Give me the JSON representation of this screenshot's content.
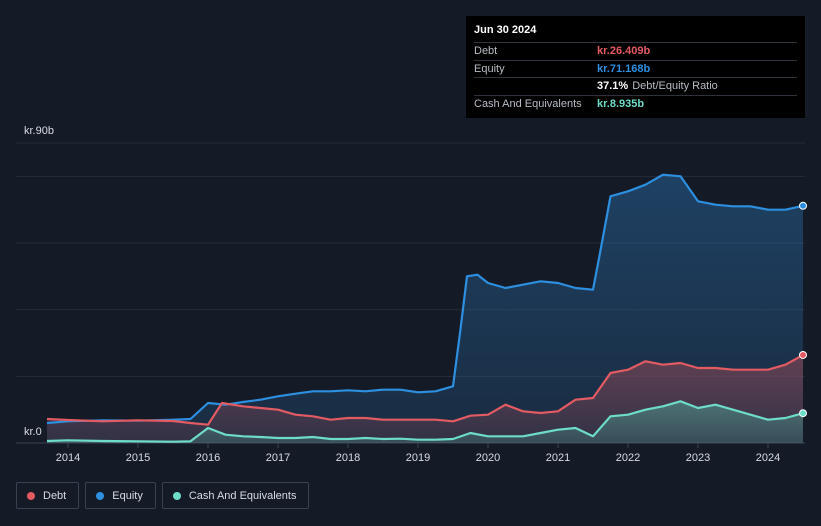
{
  "tooltip": {
    "date": "Jun 30 2024",
    "rows": [
      {
        "label": "Debt",
        "value": "kr.26.409b",
        "color": "#e35b62"
      },
      {
        "label": "Equity",
        "value": "kr.71.168b",
        "color": "#2d8fe0"
      },
      {
        "label": "",
        "value": "37.1%",
        "suffix": "Debt/Equity Ratio",
        "color": "#ffffff"
      },
      {
        "label": "Cash And Equivalents",
        "value": "kr.8.935b",
        "color": "#6ddcc8"
      }
    ]
  },
  "legend": [
    {
      "label": "Debt",
      "color": "#e35b62"
    },
    {
      "label": "Equity",
      "color": "#2d8fe0"
    },
    {
      "label": "Cash And Equivalents",
      "color": "#6ddcc8"
    }
  ],
  "chart_data": {
    "type": "area",
    "title": "",
    "ylabel_top": "kr.90b",
    "ylabel_bottom": "kr.0",
    "ylim": [
      0,
      90
    ],
    "xlim": [
      2013.7,
      2024.5
    ],
    "x_ticks": [
      "2014",
      "2015",
      "2016",
      "2017",
      "2018",
      "2019",
      "2020",
      "2021",
      "2022",
      "2023",
      "2024"
    ],
    "series": [
      {
        "name": "Equity",
        "color": "#2d8fe0",
        "x": [
          2013.7,
          2014.0,
          2014.5,
          2015.0,
          2015.5,
          2015.75,
          2016.0,
          2016.25,
          2016.5,
          2016.75,
          2017.0,
          2017.25,
          2017.5,
          2017.75,
          2018.0,
          2018.25,
          2018.5,
          2018.75,
          2019.0,
          2019.25,
          2019.5,
          2019.6,
          2019.7,
          2019.85,
          2020.0,
          2020.25,
          2020.5,
          2020.75,
          2021.0,
          2021.25,
          2021.5,
          2021.6,
          2021.75,
          2022.0,
          2022.25,
          2022.5,
          2022.75,
          2023.0,
          2023.25,
          2023.5,
          2023.75,
          2024.0,
          2024.25,
          2024.5
        ],
        "y": [
          6.0,
          6.5,
          6.8,
          6.7,
          7.0,
          7.2,
          12.0,
          11.5,
          12.3,
          13.0,
          14.0,
          14.8,
          15.5,
          15.5,
          15.8,
          15.5,
          16.0,
          16.0,
          15.2,
          15.5,
          17.0,
          33.0,
          50.0,
          50.5,
          48.0,
          46.5,
          47.5,
          48.5,
          48.0,
          46.5,
          46.0,
          57.0,
          74.0,
          75.5,
          77.5,
          80.5,
          80.0,
          72.5,
          71.5,
          71.0,
          71.0,
          70.0,
          70.0,
          71.168
        ]
      },
      {
        "name": "Debt",
        "color": "#e35b62",
        "x": [
          2013.7,
          2014.0,
          2014.5,
          2015.0,
          2015.5,
          2015.75,
          2016.0,
          2016.2,
          2016.5,
          2016.75,
          2017.0,
          2017.25,
          2017.5,
          2017.75,
          2018.0,
          2018.25,
          2018.5,
          2018.75,
          2019.0,
          2019.25,
          2019.5,
          2019.75,
          2020.0,
          2020.25,
          2020.5,
          2020.75,
          2021.0,
          2021.25,
          2021.5,
          2021.75,
          2022.0,
          2022.25,
          2022.5,
          2022.75,
          2023.0,
          2023.25,
          2023.5,
          2023.75,
          2024.0,
          2024.25,
          2024.5
        ],
        "y": [
          7.2,
          6.9,
          6.5,
          6.8,
          6.6,
          6.0,
          5.5,
          12.0,
          11.0,
          10.5,
          10.0,
          8.5,
          8.0,
          7.0,
          7.5,
          7.5,
          7.0,
          7.0,
          7.0,
          7.0,
          6.5,
          8.2,
          8.5,
          11.5,
          9.5,
          9.0,
          9.5,
          13.0,
          13.5,
          21.0,
          22.0,
          24.5,
          23.5,
          24.0,
          22.5,
          22.5,
          22.0,
          22.0,
          22.0,
          23.5,
          26.409
        ]
      },
      {
        "name": "Cash And Equivalents",
        "color": "#6ddcc8",
        "x": [
          2013.7,
          2014.0,
          2014.5,
          2015.0,
          2015.5,
          2015.75,
          2016.0,
          2016.25,
          2016.5,
          2016.75,
          2017.0,
          2017.25,
          2017.5,
          2017.75,
          2018.0,
          2018.25,
          2018.5,
          2018.75,
          2019.0,
          2019.25,
          2019.5,
          2019.75,
          2020.0,
          2020.25,
          2020.5,
          2020.75,
          2021.0,
          2021.25,
          2021.5,
          2021.75,
          2022.0,
          2022.25,
          2022.5,
          2022.75,
          2023.0,
          2023.25,
          2023.5,
          2023.75,
          2024.0,
          2024.25,
          2024.5
        ],
        "y": [
          0.6,
          0.8,
          0.6,
          0.5,
          0.4,
          0.5,
          4.5,
          2.5,
          2.0,
          1.8,
          1.5,
          1.5,
          1.8,
          1.2,
          1.2,
          1.5,
          1.2,
          1.3,
          1.0,
          1.0,
          1.2,
          3.0,
          2.0,
          2.0,
          2.0,
          3.0,
          4.0,
          4.5,
          2.0,
          8.0,
          8.5,
          10.0,
          11.0,
          12.5,
          10.5,
          11.5,
          10.0,
          8.5,
          7.0,
          7.5,
          8.935
        ]
      }
    ]
  }
}
